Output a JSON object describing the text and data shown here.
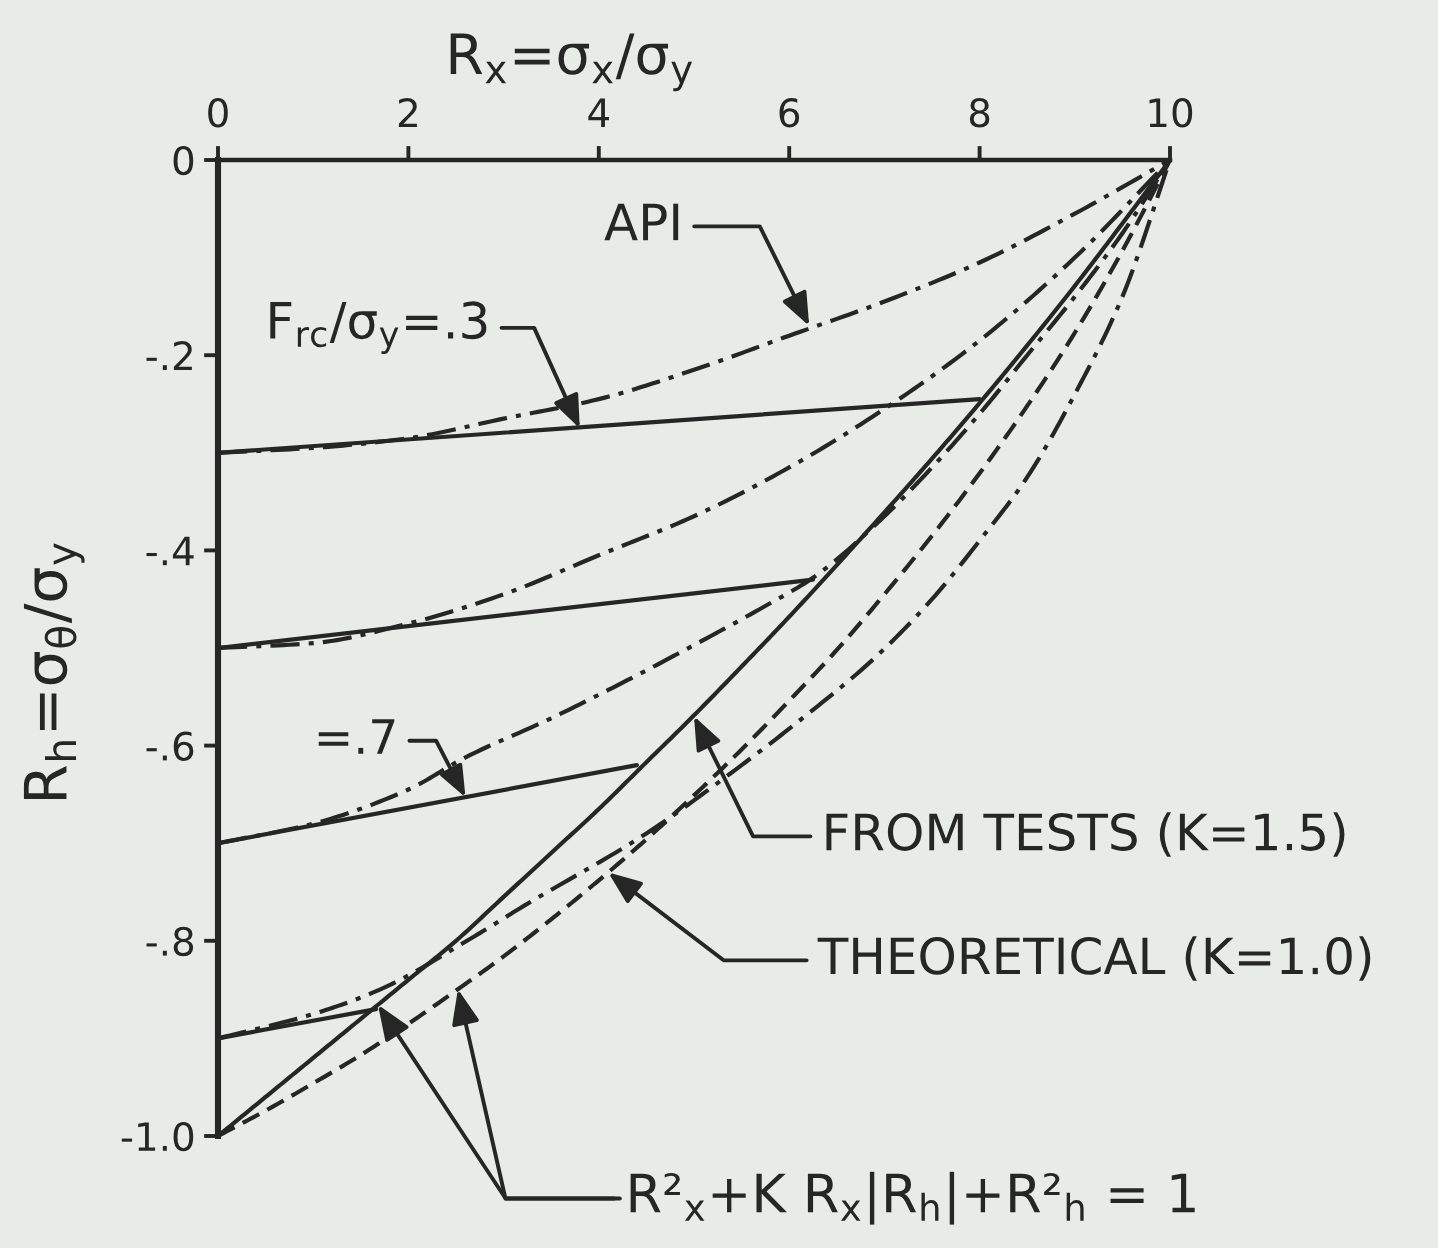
{
  "chart_data": {
    "type": "line",
    "xlabel": "R$_{x}$=σ$_{x}$/σ$_{y}$",
    "ylabel": "R$_{h}$=σ$_{θ}$/σ$_{y}$",
    "xlim": [
      0,
      10
    ],
    "xticks": [
      0,
      2,
      4,
      6,
      8,
      10
    ],
    "ylim": [
      -1.0,
      0
    ],
    "yticks": [
      0,
      {
        "value": -0.2,
        "label": "-.2"
      },
      {
        "value": -0.4,
        "label": "-.4"
      },
      {
        "value": -0.6,
        "label": "-.6"
      },
      {
        "value": -0.8,
        "label": "-.8"
      },
      {
        "value": -1.0,
        "label": "-1.0"
      }
    ],
    "series": [
      {
        "color": "#262626",
        "line_style": "dashdot",
        "x": [
          0,
          1,
          2,
          3,
          4,
          5,
          6,
          7,
          8,
          9,
          10
        ],
        "values": [
          -0.3,
          -0.295,
          -0.285,
          -0.265,
          -0.245,
          -0.215,
          -0.18,
          -0.145,
          -0.105,
          -0.055,
          0
        ]
      },
      {
        "color": "#262626",
        "line_style": "dashdot",
        "x": [
          0,
          1,
          2,
          3,
          4,
          5,
          6,
          7,
          8,
          9,
          10
        ],
        "values": [
          -0.5,
          -0.495,
          -0.475,
          -0.445,
          -0.405,
          -0.365,
          -0.315,
          -0.255,
          -0.185,
          -0.1,
          0
        ]
      },
      {
        "color": "#262626",
        "line_style": "dashdot",
        "x": [
          0,
          1,
          2,
          2.6,
          3.5,
          4.3,
          5,
          5.73,
          6.25,
          7,
          7.5,
          8,
          8.5,
          9,
          9.5,
          10
        ],
        "values": [
          -0.7,
          -0.68,
          -0.645,
          -0.612,
          -0.572,
          -0.533,
          -0.497,
          -0.458,
          -0.428,
          -0.365,
          -0.315,
          -0.26,
          -0.2,
          -0.14,
          -0.075,
          0
        ]
      },
      {
        "color": "#262626",
        "line_style": "dashdot",
        "x": [
          0,
          1,
          1.7,
          2.7,
          3.2,
          4.5,
          5.5,
          6.1,
          6.9,
          7.5,
          8,
          8.5,
          9,
          9.5,
          10
        ],
        "values": [
          -0.9,
          -0.875,
          -0.85,
          -0.795,
          -0.765,
          -0.69,
          -0.62,
          -0.575,
          -0.51,
          -0.45,
          -0.39,
          -0.325,
          -0.24,
          -0.14,
          0
        ]
      },
      {
        "color": "#262626",
        "line_style": "solid",
        "x": [
          0,
          8.0
        ],
        "values": [
          -0.3,
          -0.245
        ]
      },
      {
        "color": "#262626",
        "line_style": "solid",
        "x": [
          0,
          6.25
        ],
        "values": [
          -0.5,
          -0.43
        ]
      },
      {
        "color": "#262626",
        "line_style": "solid",
        "x": [
          0,
          4.4
        ],
        "values": [
          -0.7,
          -0.62
        ]
      },
      {
        "color": "#262626",
        "line_style": "solid",
        "x": [
          0,
          1.66
        ],
        "values": [
          -0.9,
          -0.87
        ]
      },
      {
        "color": "#262626",
        "line_style": "solid",
        "x": [
          0,
          0.5,
          1,
          1.5,
          2,
          2.5,
          3,
          3.5,
          4,
          4.5,
          5,
          5.5,
          6,
          6.5,
          7,
          7.5,
          8,
          8.5,
          9,
          9.5,
          10
        ],
        "values": [
          -1.0,
          -0.96,
          -0.92,
          -0.88,
          -0.84,
          -0.8,
          -0.755,
          -0.71,
          -0.665,
          -0.617,
          -0.569,
          -0.519,
          -0.468,
          -0.415,
          -0.361,
          -0.306,
          -0.249,
          -0.19,
          -0.129,
          -0.065,
          0
        ]
      },
      {
        "color": "#262626",
        "line_style": "dashed",
        "x": [
          0,
          0.5,
          1,
          1.5,
          2,
          2.5,
          3,
          3.5,
          4,
          4.5,
          5,
          5.5,
          6,
          6.5,
          7,
          7.5,
          8,
          8.5,
          9,
          9.5,
          10
        ],
        "values": [
          -1.0,
          -0.974,
          -0.946,
          -0.917,
          -0.885,
          -0.851,
          -0.816,
          -0.778,
          -0.738,
          -0.696,
          -0.651,
          -0.604,
          -0.554,
          -0.502,
          -0.445,
          -0.385,
          -0.321,
          -0.252,
          -0.177,
          -0.093,
          0
        ]
      }
    ],
    "annotations": [
      {
        "text": "API",
        "x": 6.21,
        "y": -0.17
      },
      {
        "text": "F$_{rc}$/σ$_{y}$=.3",
        "x": 3.8,
        "y": -0.275
      },
      {
        "text": "=.7",
        "x": 2.6,
        "y": -0.653
      },
      {
        "text": "FROM TESTS (K=1.5)",
        "x": 5.0,
        "y": -0.57
      },
      {
        "text": "THEORETICAL (K=1.0)",
        "x": 4.1,
        "y": -0.73
      },
      "R²$_{x}$+K R$_{x}$|R$_{h}$|+R²$_{h}$ = 1"
    ]
  }
}
